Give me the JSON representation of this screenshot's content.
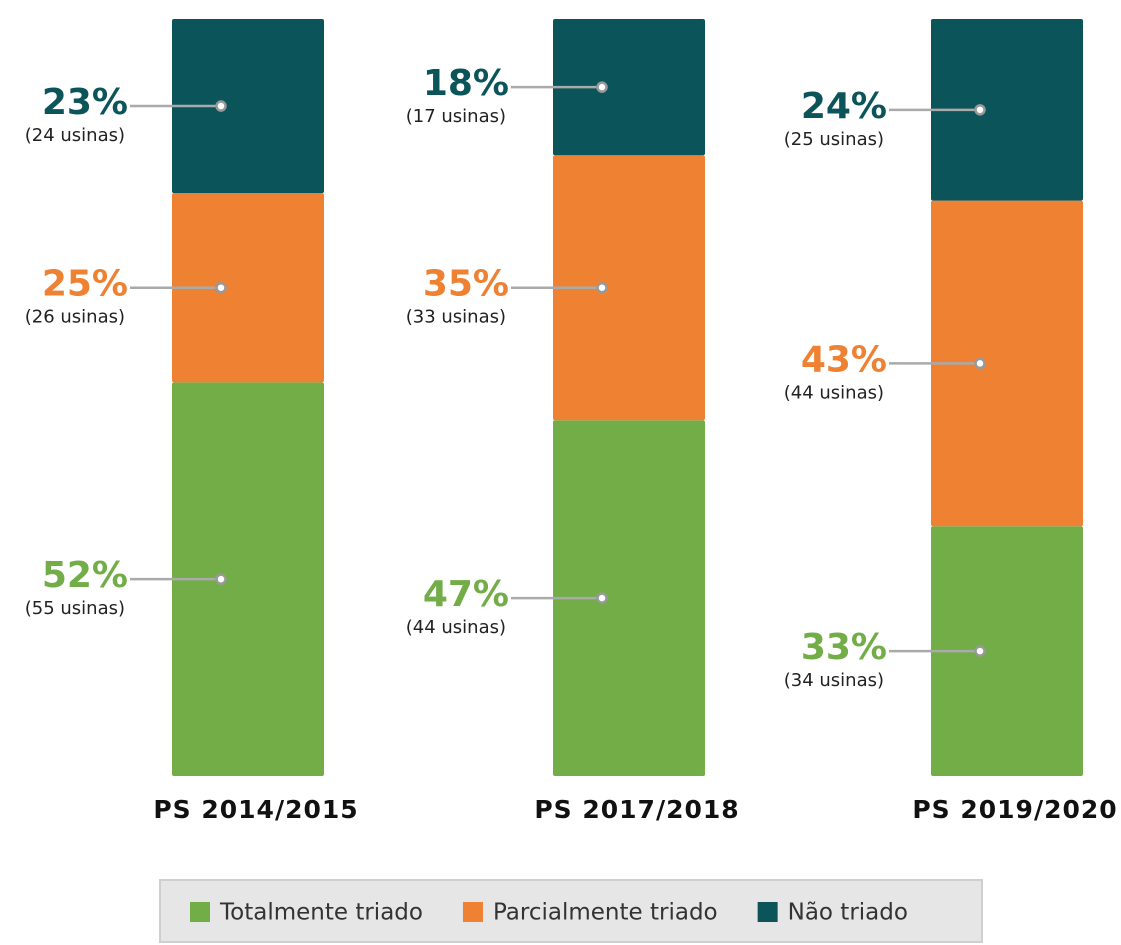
{
  "chart_data": {
    "type": "stacked_bar",
    "categories": [
      "PS 2014/2015",
      "PS 2017/2018",
      "PS 2019/2020"
    ],
    "ylim": [
      0,
      100
    ],
    "series": [
      {
        "name": "Totalmente triado",
        "color": "#72ad47",
        "values": [
          52,
          47,
          33
        ],
        "value_labels": [
          "52%",
          "47%",
          "33%"
        ],
        "count_labels": [
          "(55 usinas)",
          "(44 usinas)",
          "(34 usinas)"
        ]
      },
      {
        "name": "Parcialmente triado",
        "color": "#ef8133",
        "values": [
          25,
          35,
          43
        ],
        "value_labels": [
          "25%",
          "35%",
          "43%"
        ],
        "count_labels": [
          "(26 usinas)",
          "(33 usinas)",
          "(44 usinas)"
        ]
      },
      {
        "name": "Não triado",
        "color": "#0b5459",
        "values": [
          23,
          18,
          24
        ],
        "value_labels": [
          "23%",
          "18%",
          "24%"
        ],
        "count_labels": [
          "(24 usinas)",
          "(17 usinas)",
          "(25 usinas)"
        ]
      }
    ],
    "legend": "bottom"
  }
}
